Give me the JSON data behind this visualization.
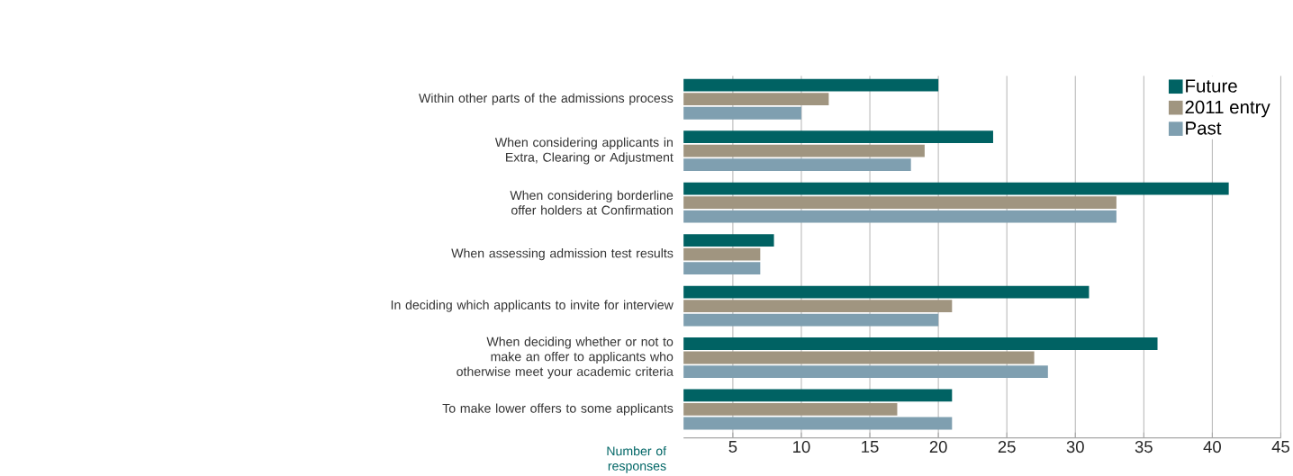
{
  "chart_data": {
    "type": "bar",
    "orientation": "horizontal",
    "categories": [
      "Within other parts of the admissions process",
      "When considering applicants in Extra, Clearing or Adjustment",
      "When considering borderline offer holders at Confirmation",
      "When assessing admission test results",
      "In deciding which applicants to invite for interview",
      "When deciding whether or not to make an offer to applicants who otherwise meet your academic criteria",
      "To make lower offers to some applicants"
    ],
    "series": [
      {
        "name": "Future",
        "color": "#006263",
        "values": [
          20,
          24,
          41.2,
          8,
          31,
          36,
          21
        ]
      },
      {
        "name": "2011 entry",
        "color": "#a09580",
        "values": [
          12,
          19,
          33,
          7,
          21,
          27,
          17
        ]
      },
      {
        "name": "Past",
        "color": "#7f9fb0",
        "values": [
          10,
          18,
          33,
          7,
          20,
          28,
          21
        ]
      }
    ],
    "xlabel": "Number of responses",
    "xlim": [
      1.4,
      45
    ],
    "xticks": [
      5,
      10,
      15,
      20,
      25,
      30,
      35,
      40,
      45
    ],
    "grid": "x",
    "legend": "top right"
  }
}
